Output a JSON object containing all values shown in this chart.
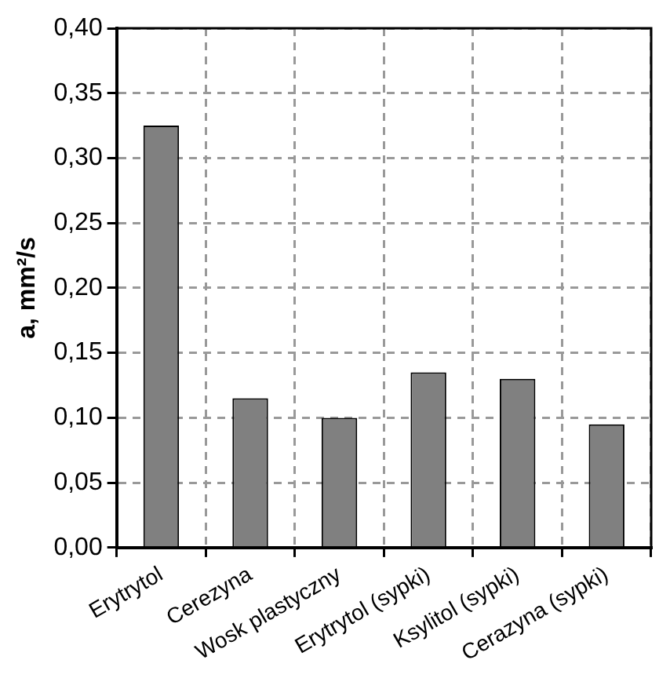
{
  "chart_data": {
    "type": "bar",
    "ylabel": "a, mm²/s",
    "categories": [
      "Erytrytol",
      "Cerezyna",
      "Wosk plastyczny",
      "Erytrytol (sypki)",
      "Ksylitol (sypki)",
      "Cerazyna (sypki)"
    ],
    "values": [
      0.325,
      0.115,
      0.1,
      0.135,
      0.13,
      0.095
    ],
    "color": "#808080",
    "ylim": [
      0,
      0.4
    ],
    "yticks": [
      {
        "value": 0,
        "label": "0,00"
      },
      {
        "value": 0.05,
        "label": "0,05"
      },
      {
        "value": 0.1,
        "label": "0,10"
      },
      {
        "value": 0.15,
        "label": "0,15"
      },
      {
        "value": 0.2,
        "label": "0,20"
      },
      {
        "value": 0.25,
        "label": "0,25"
      },
      {
        "value": 0.3,
        "label": "0,30"
      },
      {
        "value": 0.35,
        "label": "0,35"
      },
      {
        "value": 0.4,
        "label": "0,40"
      }
    ],
    "grid": true,
    "legend": false
  }
}
